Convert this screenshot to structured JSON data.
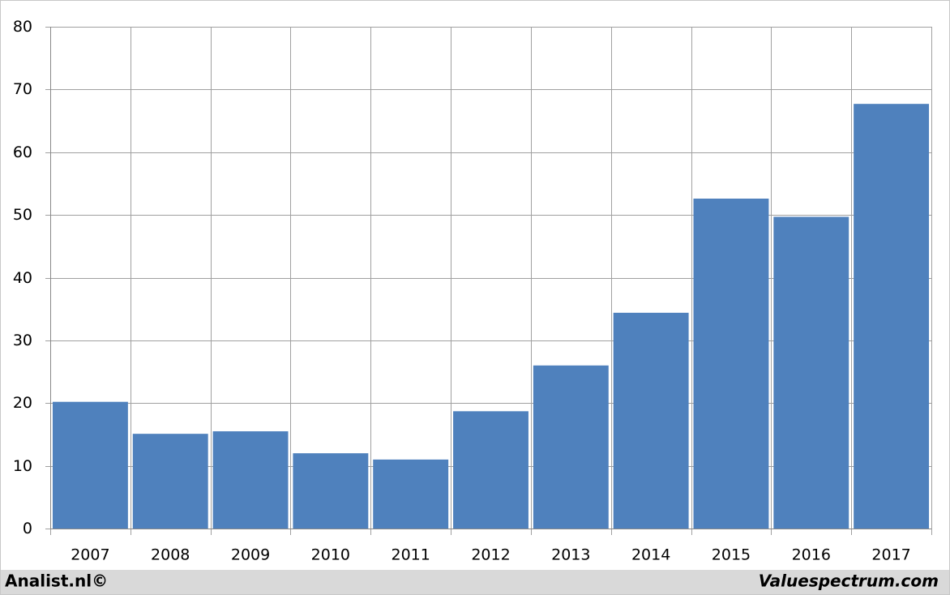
{
  "chart_data": {
    "type": "bar",
    "categories": [
      "2007",
      "2008",
      "2009",
      "2010",
      "2011",
      "2012",
      "2013",
      "2014",
      "2015",
      "2016",
      "2017"
    ],
    "values": [
      20.2,
      15.1,
      15.5,
      12.0,
      11.0,
      18.7,
      26.0,
      34.4,
      52.6,
      49.7,
      67.7
    ],
    "color": "#4f81bd",
    "ylim": [
      0,
      80
    ],
    "yticks": [
      0,
      10,
      20,
      30,
      40,
      50,
      60,
      70,
      80
    ],
    "grid": true,
    "annotations": [
      "Analist.nl©",
      "Valuespectrum.com"
    ]
  }
}
